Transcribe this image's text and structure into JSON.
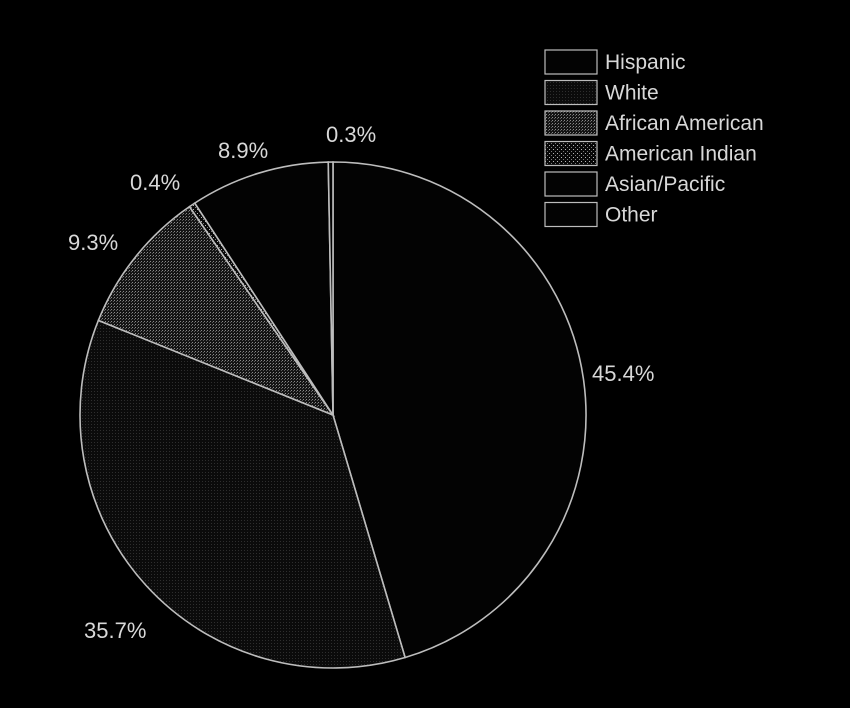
{
  "chart_data": {
    "type": "pie",
    "title": "",
    "categories": [
      "Hispanic",
      "White",
      "African American",
      "American Indian",
      "Asian/Pacific",
      "Other"
    ],
    "values": [
      45.4,
      35.7,
      9.3,
      0.4,
      8.9,
      0.3
    ],
    "value_labels": [
      "45.4%",
      "35.7%",
      "9.3%",
      "0.4%",
      "8.9%",
      "0.3%"
    ],
    "legend_position": "top-right",
    "fills": [
      "solid-black",
      "dark-fine-dots",
      "medium-dots",
      "sparse-dots",
      "solid-black",
      "solid-black"
    ],
    "colors": {
      "background": "#000000",
      "outline": "#bdbdbd",
      "text": "#d8d8d8"
    }
  }
}
